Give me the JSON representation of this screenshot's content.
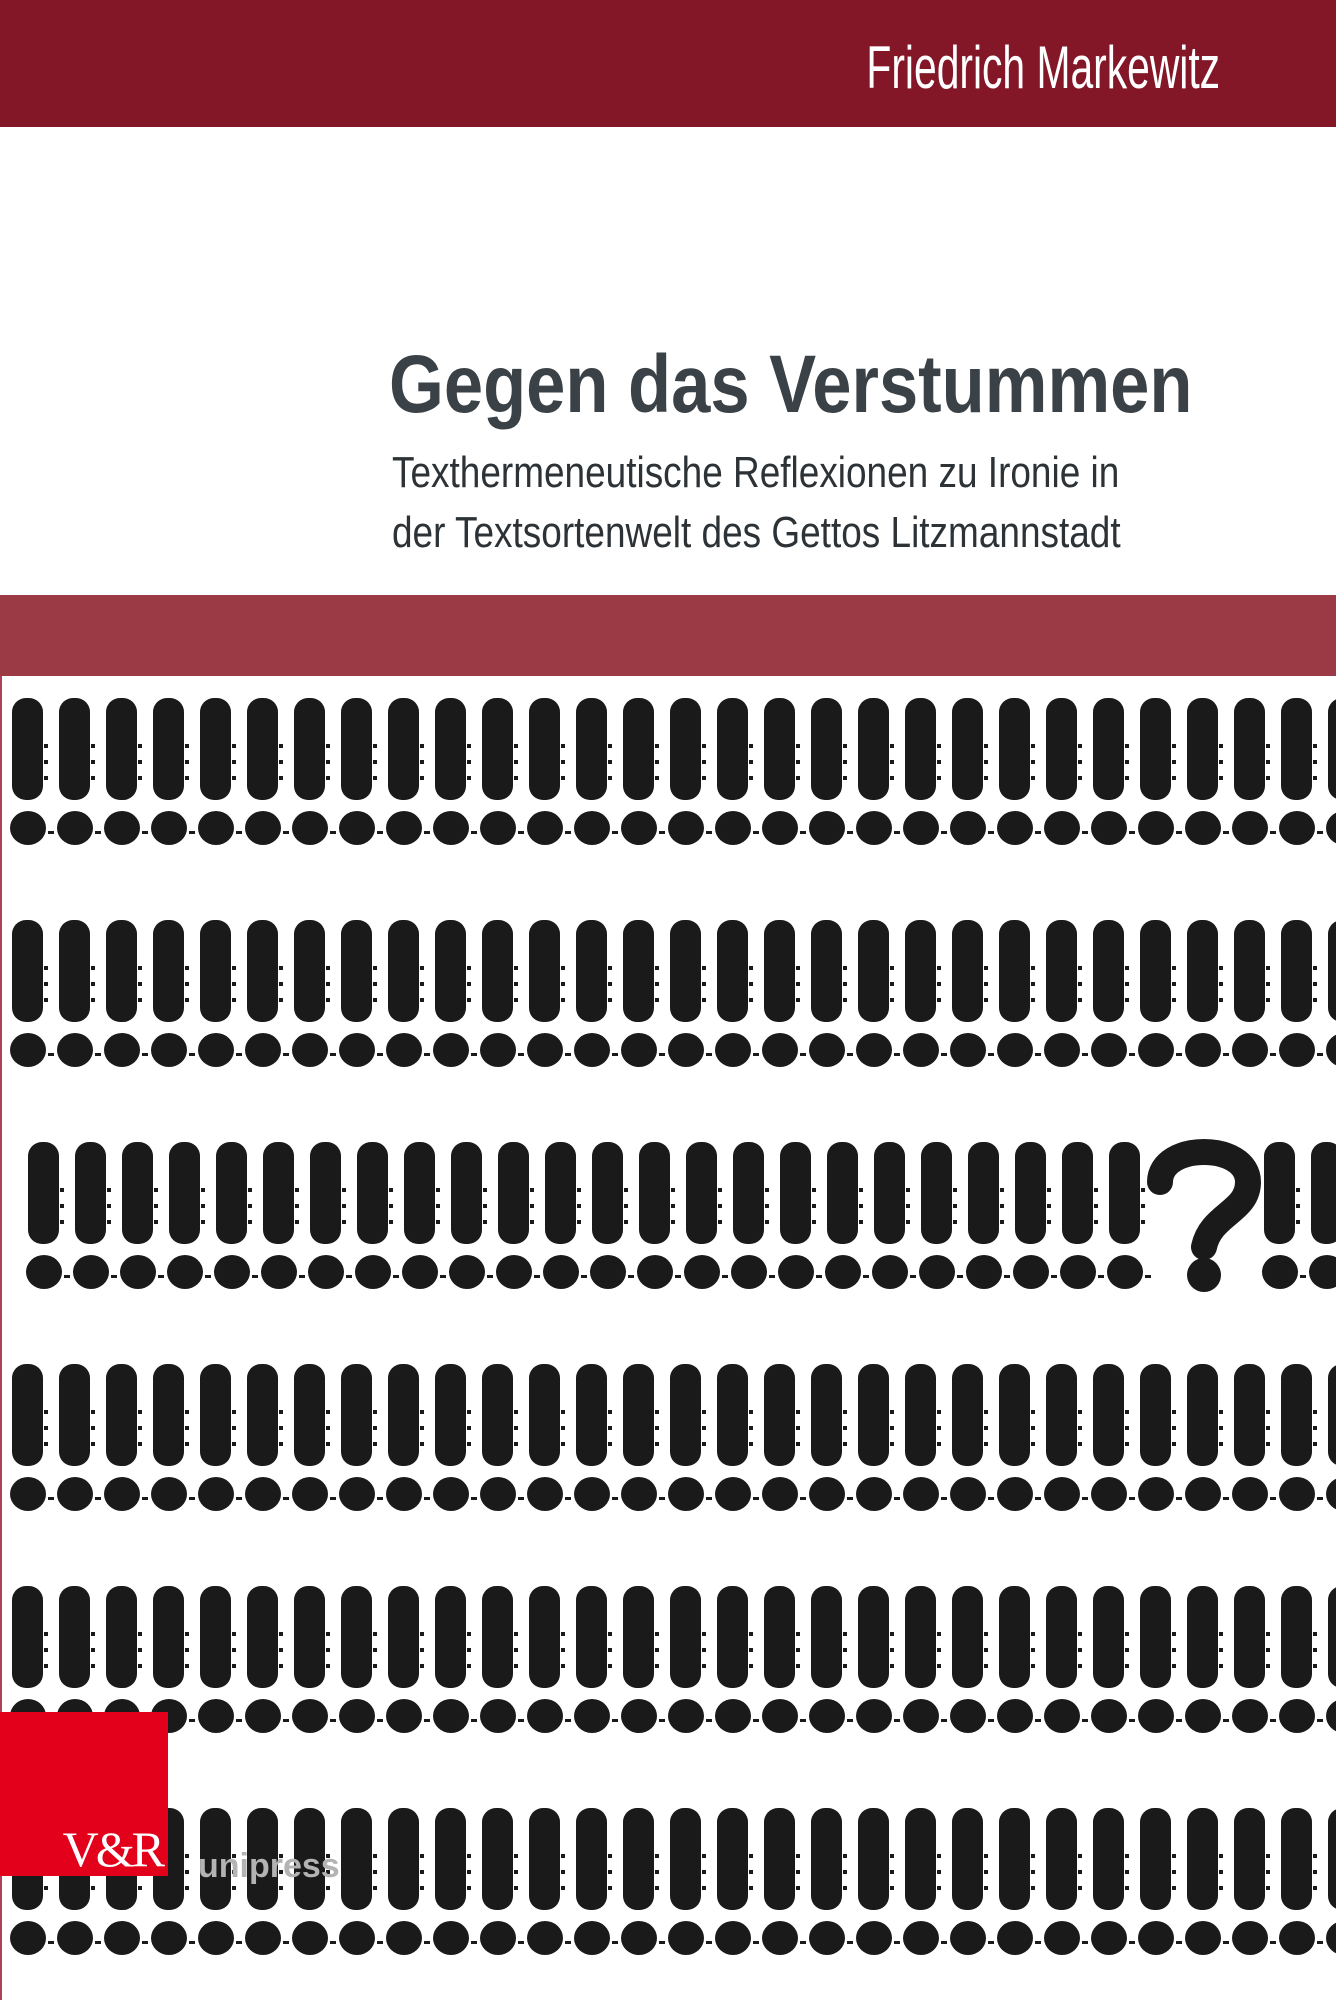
{
  "cover": {
    "author": "Friedrich Markewitz",
    "title": "Gegen das Verstummen",
    "subtitle_lines": [
      "Texthermeneutische Reflexionen zu Ironie in",
      "der Textsortenwelt des Gettos Litzmannstadt"
    ],
    "publisher_logo": {
      "mark": "V&R",
      "name": "unipress"
    }
  },
  "colors": {
    "top_bar": "#831728",
    "band": "#9b3a44",
    "logo_red": "#e2001a",
    "title": "#3b4247"
  },
  "pattern": {
    "rows": [
      {
        "marks": "!!!!!!!!!!!!!!!!!!!!!!!!!!!!!"
      },
      {
        "marks": "!!!!!!!!!!!!!!!!!!!!!!!!!!!!!"
      },
      {
        "marks": "!!!!!!!!!!!!!!!!!!!!!!!!?!!!"
      },
      {
        "marks": "!!!!!!!!!!!!!!!!!!!!!!!!!!!!!"
      },
      {
        "marks": "!!!!!!!!!!!!!!!!!!!!!!!!!!!!!"
      },
      {
        "marks": "!!!!!!!!!!!!!!!!!!!!!!!!!!!!!"
      }
    ]
  }
}
